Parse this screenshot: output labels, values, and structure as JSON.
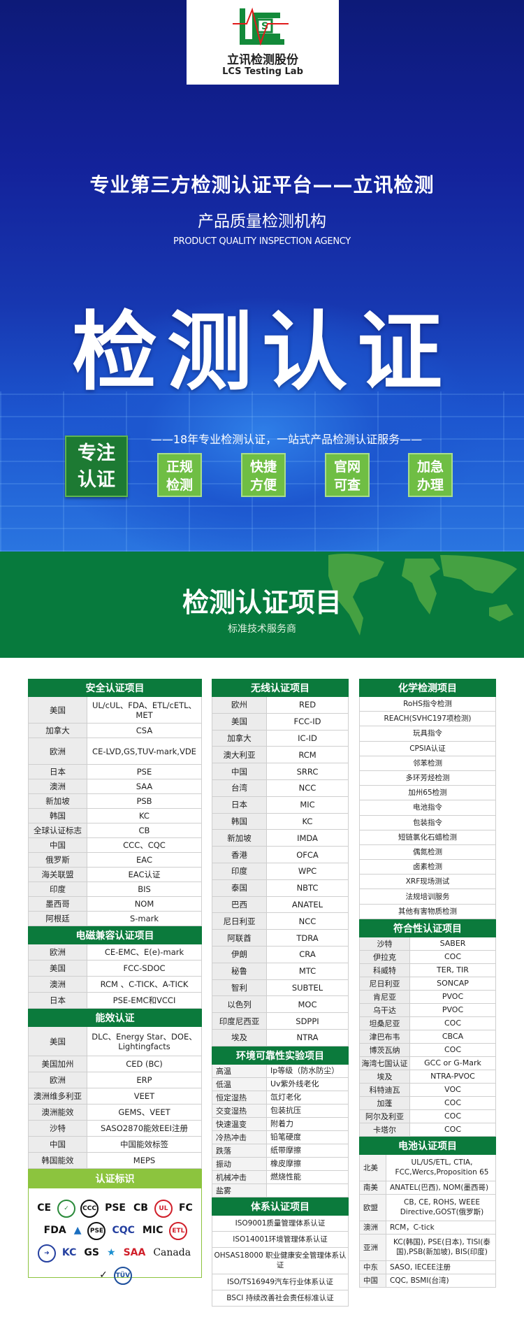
{
  "logo": {
    "name_cn": "立讯检测股份",
    "name_en": "LCS Testing Lab",
    "mark": "S"
  },
  "hero": {
    "headline": "专业第三方检测认证平台——立讯检测",
    "subtitle_cn": "产品质量检测机构",
    "subtitle_en": "PRODUCT QUALITY INSPECTION AGENCY",
    "big_title": "检测认证",
    "tagline": "——18年专业检测认证，一站式产品检测认证服务——",
    "focus": [
      "专注",
      "认证"
    ],
    "features": [
      [
        "正规",
        "检测"
      ],
      [
        "快捷",
        "方便"
      ],
      [
        "官网",
        "可查"
      ],
      [
        "加急",
        "办理"
      ]
    ]
  },
  "banner": {
    "title": "检测认证项目",
    "subtitle": "标准技术服务商"
  },
  "colors": {
    "green": "#0b7a3c",
    "lime": "#8cc43e",
    "feature": "#6fbe44",
    "blue": "#1737b0"
  },
  "sections": {
    "safety": {
      "title": "安全认证项目",
      "rows": [
        [
          "美国",
          "UL/cUL、FDA、ETL/cETL、MET"
        ],
        [
          "加拿大",
          "CSA"
        ],
        [
          "欧洲",
          "CE-LVD,GS,TUV-mark,VDE"
        ],
        [
          "日本",
          "PSE"
        ],
        [
          "澳洲",
          "SAA"
        ],
        [
          "新加坡",
          "PSB"
        ],
        [
          "韩国",
          "KC"
        ],
        [
          "全球认证标志",
          "CB"
        ],
        [
          "中国",
          "CCC、CQC"
        ],
        [
          "俄罗斯",
          "EAC"
        ],
        [
          "海关联盟",
          "EAC认证"
        ],
        [
          "印度",
          "BIS"
        ],
        [
          "墨西哥",
          "NOM"
        ],
        [
          "阿根廷",
          "S-mark"
        ]
      ]
    },
    "emc": {
      "title": "电磁兼容认证项目",
      "rows": [
        [
          "欧洲",
          "CE-EMC、E(e)-mark"
        ],
        [
          "美国",
          "FCC-SDOC"
        ],
        [
          "澳洲",
          "RCM 、C-TICK、A-TICK"
        ],
        [
          "日本",
          "PSE-EMC和VCCI"
        ]
      ]
    },
    "energy": {
      "title": "能效认证",
      "rows": [
        [
          "美国",
          "DLC、Energy Star、DOE、Lightingfacts"
        ],
        [
          "美国加州",
          "CED (BC)"
        ],
        [
          "欧洲",
          "ERP"
        ],
        [
          "澳洲维多利亚",
          "VEET"
        ],
        [
          "澳洲能效",
          "GEMS、VEET"
        ],
        [
          "沙特",
          "SASO2870能效EEI注册"
        ],
        [
          "中国",
          "中国能效标签"
        ],
        [
          "韩国能效",
          "MEPS"
        ]
      ]
    },
    "marks": {
      "title": "认证标识",
      "logos": [
        {
          "icon": "ce-mark-icon",
          "text": "CE"
        },
        {
          "icon": "wreath-mark-icon",
          "text": "✓"
        },
        {
          "icon": "ccc-mark-icon",
          "text": "CCC"
        },
        {
          "icon": "pse-diamond-icon",
          "text": "PSE"
        },
        {
          "icon": "cb-mark-icon",
          "text": "CB"
        },
        {
          "icon": "ul-mark-icon",
          "text": "UL"
        },
        {
          "icon": "fcc-mark-icon",
          "text": "FC"
        },
        {
          "icon": "fda-mark-icon",
          "text": "FDA"
        },
        {
          "icon": "tuv-triangle-icon",
          "text": "▲"
        },
        {
          "icon": "pse-round-icon",
          "text": "PSE"
        },
        {
          "icon": "cqc-mark-icon",
          "text": "CQC"
        },
        {
          "icon": "mic-mark-icon",
          "text": "MIC"
        },
        {
          "icon": "etl-mark-icon",
          "text": "ETL"
        },
        {
          "icon": "eac-arrow-icon",
          "text": "➜"
        },
        {
          "icon": "kc-mark-icon",
          "text": "KC"
        },
        {
          "icon": "gs-mark-icon",
          "text": "GS"
        },
        {
          "icon": "energy-star-icon",
          "text": "★"
        },
        {
          "icon": "saa-mark-icon",
          "text": "SAA"
        },
        {
          "icon": "canada-mark-icon",
          "text": "Canada"
        },
        {
          "icon": "rcm-mark-icon",
          "text": "✓"
        },
        {
          "icon": "tuv-mark-icon",
          "text": "TÜV"
        }
      ]
    },
    "wireless": {
      "title": "无线认证项目",
      "rows": [
        [
          "欧州",
          "RED"
        ],
        [
          "美国",
          "FCC-ID"
        ],
        [
          "加拿大",
          "IC-ID"
        ],
        [
          "澳大利亚",
          "RCM"
        ],
        [
          "中国",
          "SRRC"
        ],
        [
          "台湾",
          "NCC"
        ],
        [
          "日本",
          "MIC"
        ],
        [
          "韩国",
          "KC"
        ],
        [
          "新加坡",
          "IMDA"
        ],
        [
          "香港",
          "OFCA"
        ],
        [
          "印度",
          "WPC"
        ],
        [
          "泰国",
          "NBTC"
        ],
        [
          "巴西",
          "ANATEL"
        ],
        [
          "尼日利亚",
          "NCC"
        ],
        [
          "阿联酋",
          "TDRA"
        ],
        [
          "伊朗",
          "CRA"
        ],
        [
          "秘鲁",
          "MTC"
        ],
        [
          "智利",
          "SUBTEL"
        ],
        [
          "以色列",
          "MOC"
        ],
        [
          "印度尼西亚",
          "SDPPI"
        ],
        [
          "埃及",
          "NTRA"
        ]
      ]
    },
    "environment": {
      "title": "环境可靠性实验项目",
      "rows": [
        [
          "高温",
          "Ip等级（防水防尘）"
        ],
        [
          "低温",
          "Uv紫外线老化"
        ],
        [
          "恒定湿热",
          "氙灯老化"
        ],
        [
          "交变湿热",
          "包装抗压"
        ],
        [
          "快速温变",
          "附着力"
        ],
        [
          "冷热冲击",
          "铅笔硬度"
        ],
        [
          "跌落",
          "纸带摩擦"
        ],
        [
          "振动",
          "橡皮摩擦"
        ],
        [
          "机械冲击",
          "燃烧性能"
        ],
        [
          "盐雾",
          ""
        ]
      ]
    },
    "system": {
      "title": "体系认证项目",
      "rows": [
        "ISO9001质量管理体系认证",
        "ISO14001环境管理体系认证",
        "OHSAS18000 职业健康安全管理体系认证",
        "ISO/TS16949汽车行业体系认证",
        "BSCI 持续改善社会责任标准认证"
      ]
    },
    "chemical": {
      "title": "化学检测项目",
      "rows": [
        "RoHS指令检测",
        "REACH(SVHC197项检测)",
        "玩具指令",
        "CPSIA认证",
        "邻苯检测",
        "多环芳烃检测",
        "加州65检测",
        "电池指令",
        "包装指令",
        "短链氯化石蜡检测",
        "偶氮检测",
        "卤素检测",
        "XRF现场测试",
        "法规培训服务",
        "其他有害物质检测"
      ]
    },
    "conformity": {
      "title": "符合性认证项目",
      "rows": [
        [
          "沙特",
          "SABER"
        ],
        [
          "伊拉克",
          "COC"
        ],
        [
          "科威特",
          "TER, TIR"
        ],
        [
          "尼日利亚",
          "SONCAP"
        ],
        [
          "肯尼亚",
          "PVOC"
        ],
        [
          "乌干达",
          "PVOC"
        ],
        [
          "坦桑尼亚",
          "COC"
        ],
        [
          "津巴布韦",
          "CBCA"
        ],
        [
          "博茨瓦纳",
          "COC"
        ],
        [
          "海湾七国认证",
          "GCC or G-Mark"
        ],
        [
          "埃及",
          "NTRA-PVOC"
        ],
        [
          "科特迪瓦",
          "VOC"
        ],
        [
          "加蓬",
          "COC"
        ],
        [
          "阿尔及利亚",
          "COC"
        ],
        [
          "卡塔尔",
          "COC"
        ]
      ]
    },
    "battery": {
      "title": "电池认证项目",
      "rows": [
        [
          "北美",
          "UL/US/ETL, CTIA, FCC,Wercs,Proposition 65"
        ],
        [
          "南美",
          "ANATEL(巴西), NOM(墨西哥)"
        ],
        [
          "欧盟",
          "CB, CE, ROHS, WEEE Directive,GOST(俄罗斯)"
        ],
        [
          "澳洲",
          "RCM，C-tick"
        ],
        [
          "亚洲",
          "KC(韩国), PSE(日本), TISI(泰国),PSB(新加坡), BIS(印度)"
        ],
        [
          "中东",
          "SASO, IECEE注册"
        ],
        [
          "中国",
          "CQC, BSMI(台湾)"
        ]
      ]
    }
  }
}
